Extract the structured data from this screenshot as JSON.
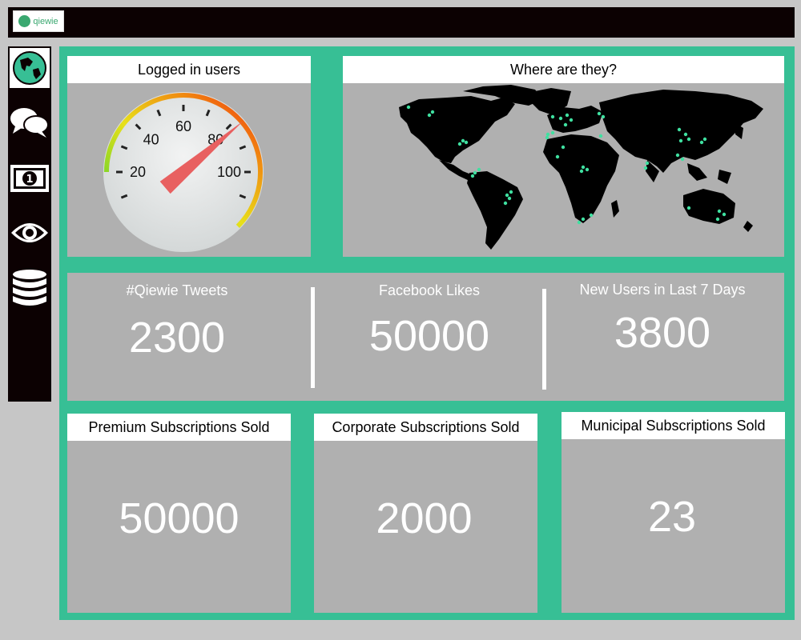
{
  "app": {
    "logo_text": "qiewie"
  },
  "sidebar": {
    "items": [
      {
        "icon": "globe-icon",
        "active": true
      },
      {
        "icon": "chat-icon",
        "active": false
      },
      {
        "icon": "money-icon",
        "active": false
      },
      {
        "icon": "eye-icon",
        "active": false
      },
      {
        "icon": "database-icon",
        "active": false
      }
    ]
  },
  "gauge": {
    "title": "Logged in users",
    "tick_labels": [
      "20",
      "40",
      "60",
      "80",
      "100"
    ],
    "min": 0,
    "max": 120,
    "value": 82
  },
  "map": {
    "title": "Where are they?"
  },
  "stats": [
    {
      "label": "#Qiewie Tweets",
      "value": "2300"
    },
    {
      "label": "Facebook Likes",
      "value": "50000"
    },
    {
      "label": "New Users in Last 7 Days",
      "value": "3800"
    }
  ],
  "subscriptions": [
    {
      "title": "Premium Subscriptions Sold",
      "value": "50000"
    },
    {
      "title": "Corporate Subscriptions Sold",
      "value": "2000"
    },
    {
      "title": "Municipal Subscriptions Sold",
      "value": "23"
    }
  ],
  "colors": {
    "accent": "#37bf95",
    "dark": "#0c0102",
    "panel": "#b0b0b0",
    "needle": "#e86060"
  }
}
